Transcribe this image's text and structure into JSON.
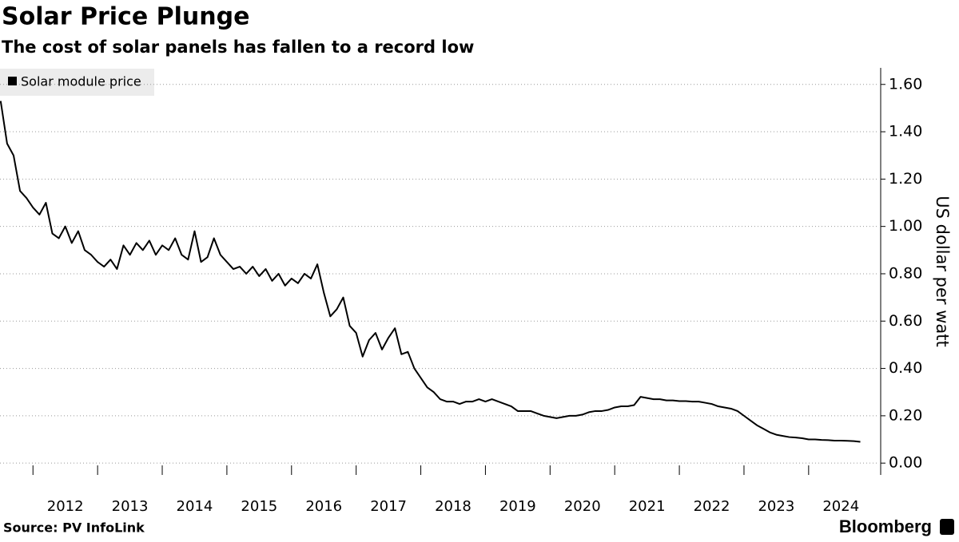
{
  "chart_data": {
    "type": "line",
    "title": "Solar Price Plunge",
    "subtitle": "The cost of solar panels has fallen to a record low",
    "y_label": "US dollar per watt",
    "source": "Source: PV InfoLink",
    "brand": "Bloomberg",
    "grid": true,
    "legend": "top-left",
    "xlim": [
      2011.49,
      2025.09
    ],
    "xticks": [
      2012,
      2013,
      2014,
      2015,
      2016,
      2017,
      2018,
      2019,
      2020,
      2021,
      2022,
      2023,
      2024
    ],
    "ylim": [
      -0.05,
      1.67
    ],
    "yticks": [
      {
        "value": 0,
        "label": "0.00"
      },
      {
        "value": 0.2,
        "label": "0.20"
      },
      {
        "value": 0.4,
        "label": "0.40"
      },
      {
        "value": 0.6,
        "label": "0.60"
      },
      {
        "value": 0.8,
        "label": "0.80"
      },
      {
        "value": 1,
        "label": "1.00"
      },
      {
        "value": 1.2,
        "label": "1.20"
      },
      {
        "value": 1.4,
        "label": "1.40"
      },
      {
        "value": 1.6,
        "label": "1.60"
      }
    ],
    "x": [
      2011.5,
      2011.6,
      2011.7,
      2011.8,
      2011.9,
      2012.0,
      2012.1,
      2012.2,
      2012.3,
      2012.4,
      2012.5,
      2012.6,
      2012.7,
      2012.8,
      2012.9,
      2013.0,
      2013.1,
      2013.2,
      2013.3,
      2013.4,
      2013.5,
      2013.6,
      2013.7,
      2013.8,
      2013.9,
      2014.0,
      2014.1,
      2014.2,
      2014.3,
      2014.4,
      2014.5,
      2014.6,
      2014.7,
      2014.8,
      2014.9,
      2015.0,
      2015.1,
      2015.2,
      2015.3,
      2015.4,
      2015.5,
      2015.6,
      2015.7,
      2015.8,
      2015.9,
      2016.0,
      2016.1,
      2016.2,
      2016.3,
      2016.4,
      2016.5,
      2016.6,
      2016.7,
      2016.8,
      2016.9,
      2017.0,
      2017.1,
      2017.2,
      2017.3,
      2017.4,
      2017.5,
      2017.6,
      2017.7,
      2017.8,
      2017.9,
      2018.0,
      2018.1,
      2018.2,
      2018.3,
      2018.4,
      2018.5,
      2018.6,
      2018.7,
      2018.8,
      2018.9,
      2019.0,
      2019.1,
      2019.2,
      2019.3,
      2019.4,
      2019.5,
      2019.6,
      2019.7,
      2019.8,
      2019.9,
      2020.0,
      2020.1,
      2020.2,
      2020.3,
      2020.4,
      2020.5,
      2020.6,
      2020.7,
      2020.8,
      2020.9,
      2021.0,
      2021.1,
      2021.2,
      2021.3,
      2021.4,
      2021.5,
      2021.6,
      2021.7,
      2021.8,
      2021.9,
      2022.0,
      2022.1,
      2022.2,
      2022.3,
      2022.4,
      2022.5,
      2022.6,
      2022.7,
      2022.8,
      2022.9,
      2023.0,
      2023.1,
      2023.2,
      2023.3,
      2023.4,
      2023.5,
      2023.6,
      2023.7,
      2023.8,
      2023.9,
      2024.0,
      2024.1,
      2024.2,
      2024.3,
      2024.4,
      2024.5,
      2024.6,
      2024.7,
      2024.8
    ],
    "series": [
      {
        "name": "Solar module price",
        "color": "#000000",
        "values": [
          1.53,
          1.35,
          1.3,
          1.15,
          1.12,
          1.08,
          1.05,
          1.1,
          0.97,
          0.95,
          1.0,
          0.93,
          0.98,
          0.9,
          0.88,
          0.85,
          0.83,
          0.86,
          0.82,
          0.92,
          0.88,
          0.93,
          0.9,
          0.94,
          0.88,
          0.92,
          0.9,
          0.95,
          0.88,
          0.86,
          0.98,
          0.85,
          0.87,
          0.95,
          0.88,
          0.85,
          0.82,
          0.83,
          0.8,
          0.83,
          0.79,
          0.82,
          0.77,
          0.8,
          0.75,
          0.78,
          0.76,
          0.8,
          0.78,
          0.84,
          0.72,
          0.62,
          0.65,
          0.7,
          0.58,
          0.55,
          0.45,
          0.52,
          0.55,
          0.48,
          0.53,
          0.57,
          0.46,
          0.47,
          0.4,
          0.36,
          0.32,
          0.3,
          0.27,
          0.26,
          0.26,
          0.25,
          0.26,
          0.26,
          0.27,
          0.26,
          0.27,
          0.26,
          0.25,
          0.24,
          0.22,
          0.22,
          0.22,
          0.21,
          0.2,
          0.195,
          0.19,
          0.195,
          0.2,
          0.2,
          0.205,
          0.215,
          0.22,
          0.22,
          0.225,
          0.235,
          0.24,
          0.24,
          0.245,
          0.28,
          0.275,
          0.27,
          0.27,
          0.265,
          0.265,
          0.262,
          0.262,
          0.26,
          0.26,
          0.255,
          0.25,
          0.24,
          0.235,
          0.23,
          0.22,
          0.2,
          0.18,
          0.16,
          0.145,
          0.13,
          0.12,
          0.115,
          0.11,
          0.108,
          0.105,
          0.1,
          0.1,
          0.098,
          0.097,
          0.095,
          0.095,
          0.094,
          0.093,
          0.09
        ]
      }
    ]
  }
}
